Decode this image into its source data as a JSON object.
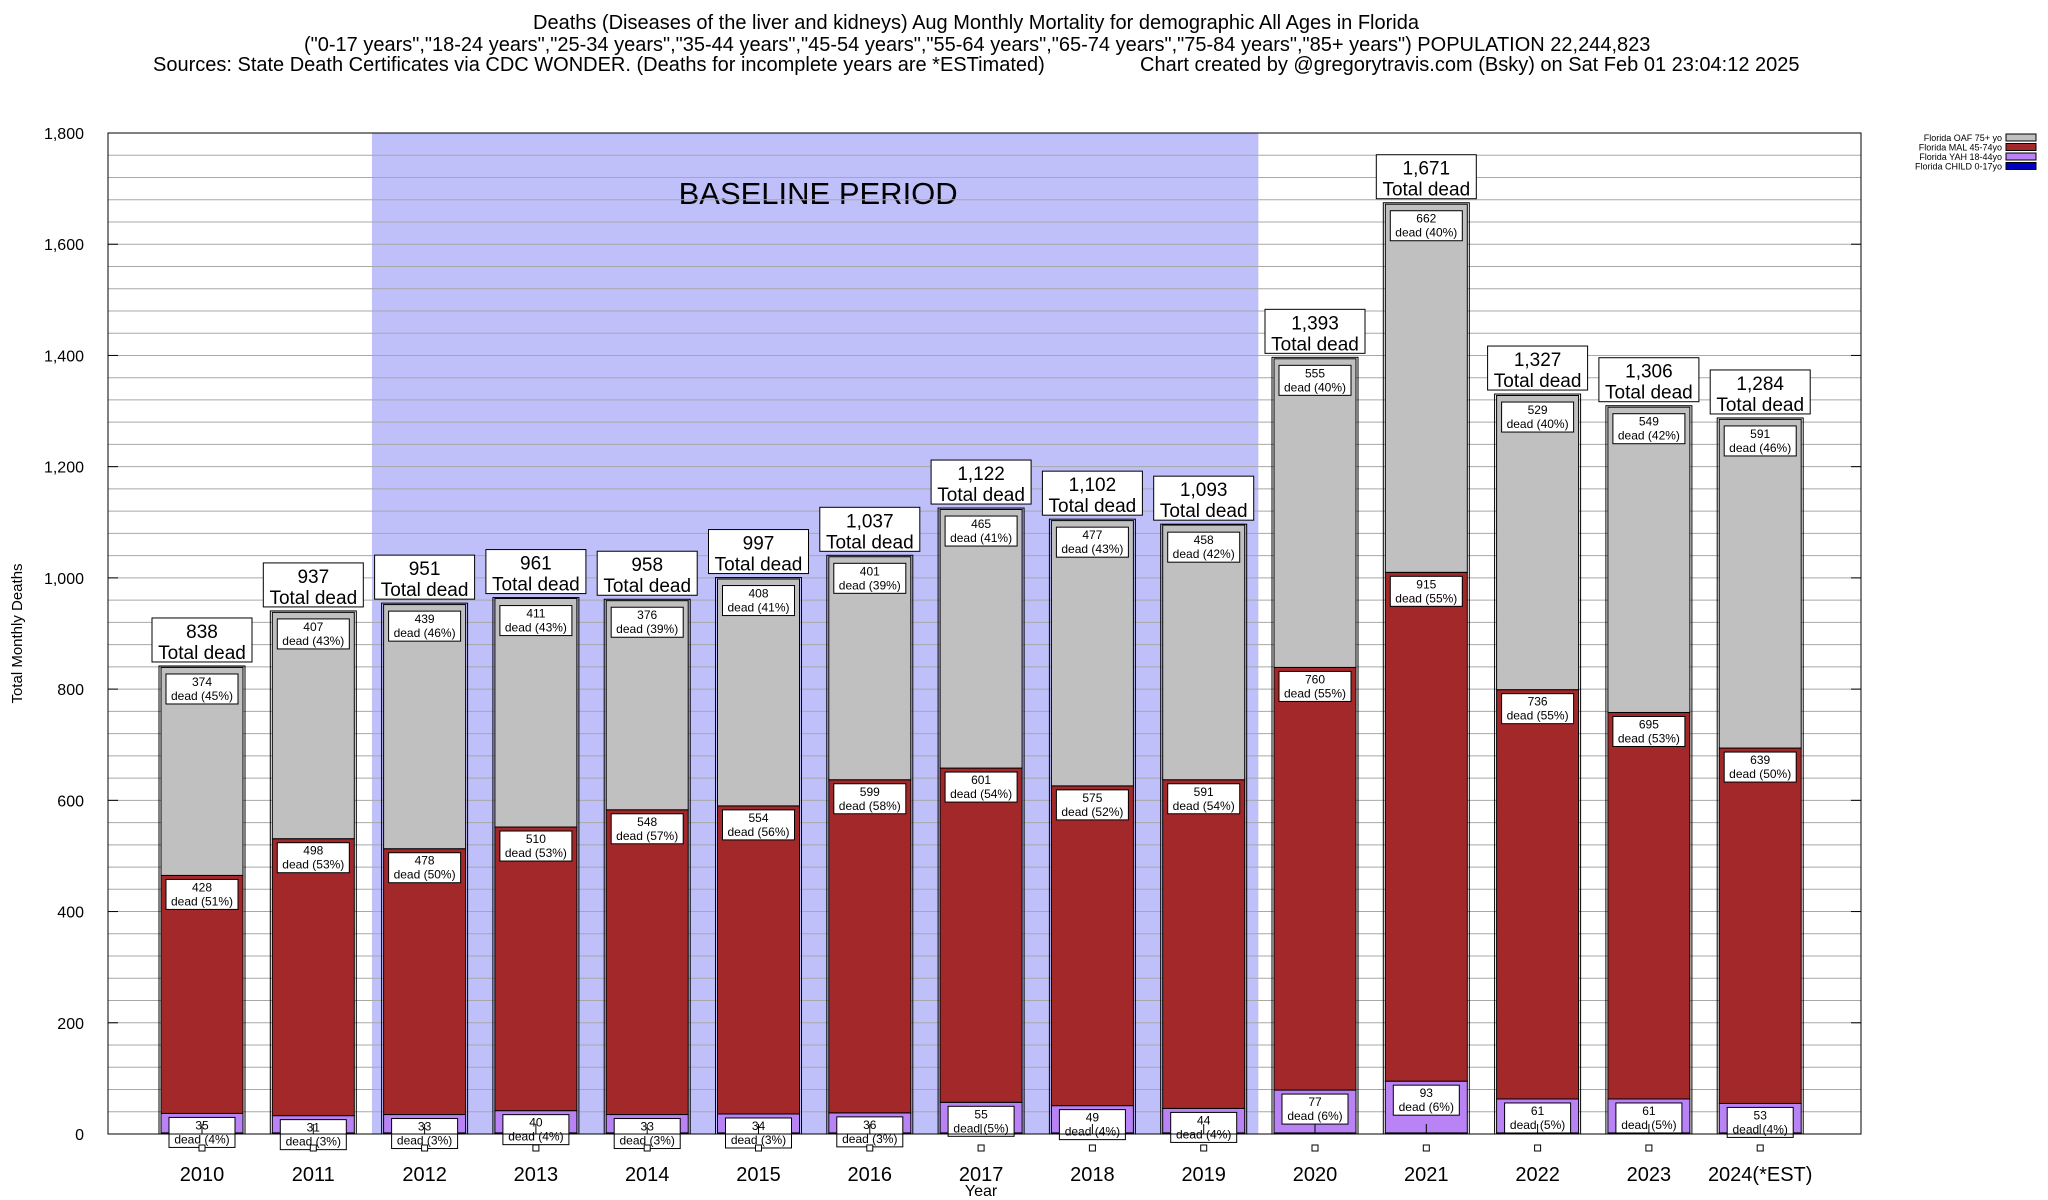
{
  "title": {
    "line1": "Deaths (Diseases of the liver and kidneys) Aug Monthly Mortality for demographic All Ages in Florida",
    "line2": "(\"0-17 years\",\"18-24 years\",\"25-34 years\",\"35-44 years\",\"45-54 years\",\"55-64 years\",\"65-74 years\",\"75-84 years\",\"85+ years\") POPULATION 22,244,823",
    "sources": "Sources: State Death Certificates via CDC WONDER. (Deaths for incomplete years are *ESTimated)",
    "credit": "Chart created by @gregorytravis.com (Bsky) on Sat Feb 01 23:04:12 2025"
  },
  "colors": {
    "child": "#0000c0",
    "yah": "#b983f5",
    "mal": "#a3282a",
    "oaf": "#c0c0c0",
    "baseline": "#bfbff9"
  },
  "chart_data": {
    "type": "bar",
    "stacked": true,
    "xlabel": "Year",
    "ylabel": "Total Monthly Deaths",
    "ylim": [
      0,
      1800
    ],
    "yticks": [
      0,
      200,
      400,
      600,
      800,
      1000,
      1200,
      1400,
      1600,
      1800
    ],
    "ytick_labels": [
      "0",
      "200",
      "400",
      "600",
      "800",
      "1,000",
      "1,200",
      "1,400",
      "1,600",
      "1,800"
    ],
    "grid": true,
    "legend_position": "top-right",
    "categories": [
      "2010",
      "2011",
      "2012",
      "2013",
      "2014",
      "2015",
      "2016",
      "2017",
      "2018",
      "2019",
      "2020",
      "2021",
      "2022",
      "2023",
      "2024(*EST)"
    ],
    "series": [
      {
        "name": "Florida CHILD 0-17yo",
        "key": "child",
        "values": [
          2,
          2,
          2,
          2,
          2,
          2,
          2,
          2,
          2,
          2,
          2,
          2,
          2,
          2,
          2
        ]
      },
      {
        "name": "Florida YAH 18-44yo",
        "key": "yah",
        "values": [
          35,
          31,
          33,
          40,
          33,
          34,
          36,
          55,
          49,
          44,
          77,
          93,
          61,
          61,
          53
        ],
        "labels": [
          "35",
          "31",
          "33",
          "40",
          "33",
          "34",
          "36",
          "55",
          "49",
          "44",
          "77",
          "93",
          "61",
          "61",
          "53"
        ],
        "pct_labels": [
          "dead (4%)",
          "dead (3%)",
          "dead (3%)",
          "dead (4%)",
          "dead (3%)",
          "dead (3%)",
          "dead (3%)",
          "dead (5%)",
          "dead (4%)",
          "dead (4%)",
          "dead (6%)",
          "dead (6%)",
          "dead (5%)",
          "dead (5%)",
          "dead (4%)"
        ]
      },
      {
        "name": "Florida MAL 45-74yo",
        "key": "mal",
        "values": [
          428,
          498,
          478,
          510,
          548,
          554,
          599,
          601,
          575,
          591,
          760,
          915,
          736,
          695,
          639
        ],
        "labels": [
          "428",
          "498",
          "478",
          "510",
          "548",
          "554",
          "599",
          "601",
          "575",
          "591",
          "760",
          "915",
          "736",
          "695",
          "639"
        ],
        "pct_labels": [
          "dead (51%)",
          "dead (53%)",
          "dead (50%)",
          "dead (53%)",
          "dead (57%)",
          "dead (56%)",
          "dead (58%)",
          "dead (54%)",
          "dead (52%)",
          "dead (54%)",
          "dead (55%)",
          "dead (55%)",
          "dead (55%)",
          "dead (53%)",
          "dead (50%)"
        ]
      },
      {
        "name": "Florida OAF 75+ yo",
        "key": "oaf",
        "values": [
          374,
          407,
          439,
          411,
          376,
          408,
          401,
          465,
          477,
          458,
          555,
          662,
          529,
          549,
          591
        ],
        "labels": [
          "374",
          "407",
          "439",
          "411",
          "376",
          "408",
          "401",
          "465",
          "477",
          "458",
          "555",
          "662",
          "529",
          "549",
          "591"
        ],
        "pct_labels": [
          "dead (45%)",
          "dead (43%)",
          "dead (46%)",
          "dead (43%)",
          "dead (39%)",
          "dead (41%)",
          "dead (39%)",
          "dead (41%)",
          "dead (43%)",
          "dead (42%)",
          "dead (40%)",
          "dead (40%)",
          "dead (40%)",
          "dead (42%)",
          "dead (46%)"
        ]
      }
    ],
    "totals": [
      838,
      937,
      951,
      961,
      958,
      997,
      1037,
      1122,
      1102,
      1093,
      1393,
      1671,
      1327,
      1306,
      1284
    ],
    "total_labels": [
      "838",
      "937",
      "951",
      "961",
      "958",
      "997",
      "1,037",
      "1,122",
      "1,102",
      "1,093",
      "1,393",
      "1,671",
      "1,327",
      "1,306",
      "1,284"
    ],
    "total_suffix": "Total dead",
    "baseline": {
      "label": "BASELINE PERIOD",
      "from": "2012",
      "to": "2019"
    }
  }
}
